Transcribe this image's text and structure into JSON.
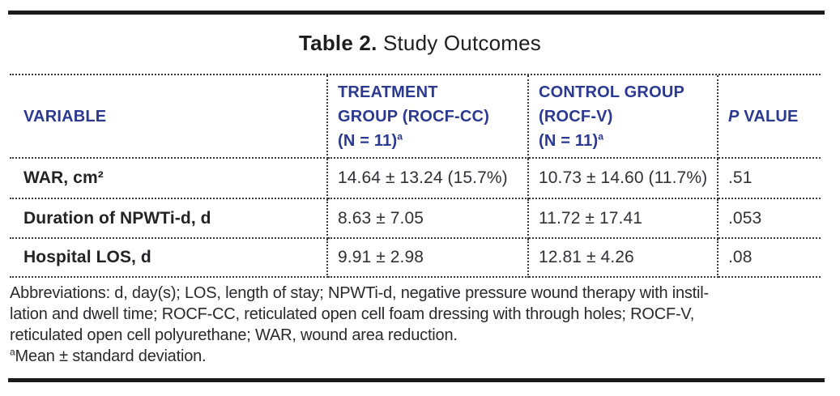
{
  "title": {
    "prefix": "Table 2.",
    "text": " Study Outcomes"
  },
  "table": {
    "header": {
      "variable": "VARIABLE",
      "treatment": {
        "line1": "TREATMENT",
        "line2": "GROUP (ROCF-CC)",
        "line3": "(N = 11)",
        "sup": "a"
      },
      "control": {
        "line1": "CONTROL GROUP",
        "line2": "(ROCF-V)",
        "line3": "(N = 11)",
        "sup": "a"
      },
      "p_value": {
        "italic": "P",
        "rest": " VALUE"
      }
    },
    "rows": [
      {
        "variable": "WAR, cm²",
        "treatment": "14.64 ± 13.24 (15.7%)",
        "control": "10.73 ± 14.60 (11.7%)",
        "p": ".51"
      },
      {
        "variable": "Duration of NPWTi-d, d",
        "treatment": "8.63 ± 7.05",
        "control": "11.72 ± 17.41",
        "p": ".053"
      },
      {
        "variable": "Hospital LOS, d",
        "treatment": "9.91 ± 2.98",
        "control": "12.81 ± 4.26",
        "p": ".08"
      }
    ]
  },
  "footnotes": {
    "abbreviation_lines": [
      "Abbreviations: d, day(s); LOS, length of stay; NPWTi-d, negative pressure wound therapy with instil-",
      "lation and dwell time; ROCF-CC, reticulated open cell foam dressing with through holes; ROCF-V,",
      "reticulated open cell polyurethane; WAR, wound area reduction."
    ],
    "mean_note": {
      "sup": "a",
      "text": "Mean ± standard deviation."
    }
  },
  "colors": {
    "header_blue": "#2b3990",
    "text_black": "#232327",
    "rule_black": "#1b1b1d"
  }
}
